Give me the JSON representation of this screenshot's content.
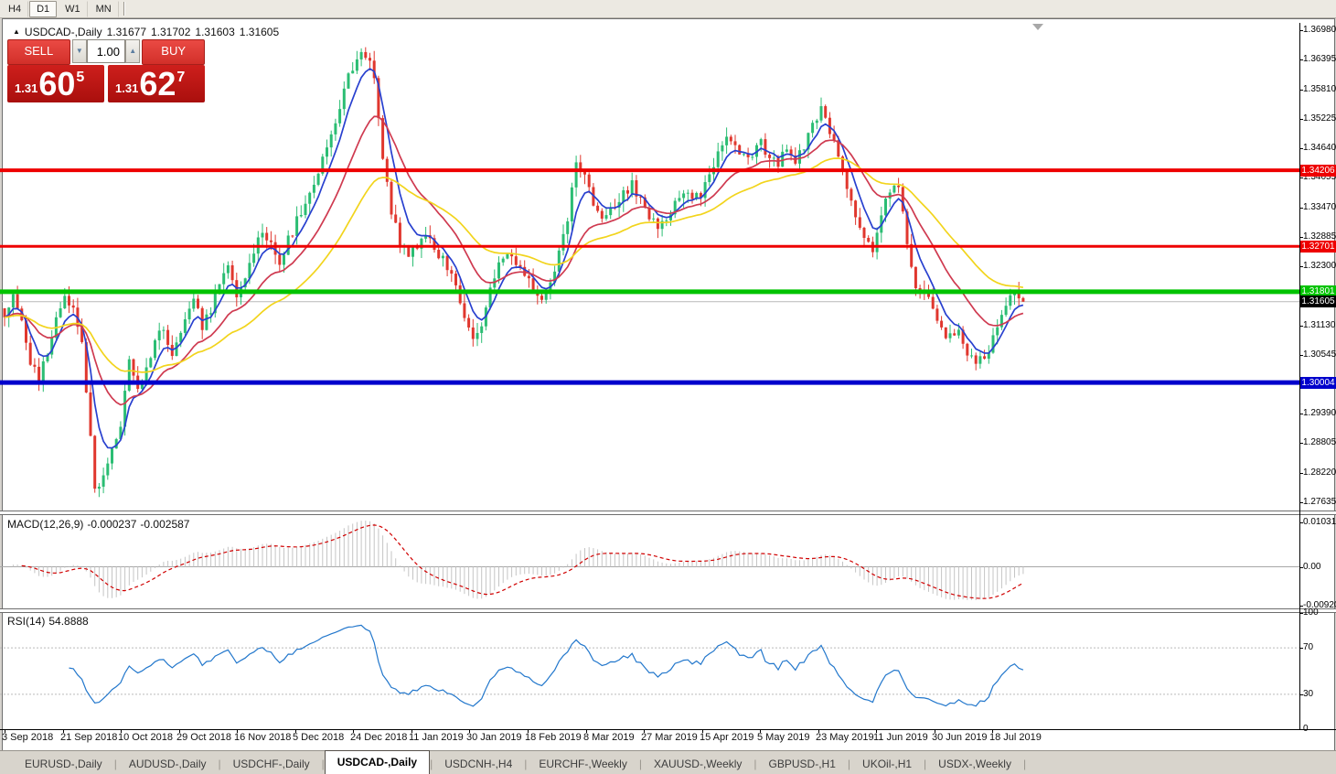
{
  "toolbar": {
    "timeframes": [
      {
        "label": "H4",
        "active": false
      },
      {
        "label": "D1",
        "active": true
      },
      {
        "label": "W1",
        "active": false
      },
      {
        "label": "MN",
        "active": false
      }
    ]
  },
  "chart": {
    "collapse_icon": "▲",
    "symbol_title": "USDCAD-,Daily",
    "ohlc": {
      "open": "1.31677",
      "high": "1.31702",
      "low": "1.31603",
      "close": "1.31605"
    },
    "trade_panel": {
      "sell_label": "SELL",
      "buy_label": "BUY",
      "volume": "1.00",
      "spin_down_icon": "▼",
      "spin_up_icon": "▲",
      "sell_price": {
        "prefix": "1.31",
        "big": "60",
        "sup": "5"
      },
      "buy_price": {
        "prefix": "1.31",
        "big": "62",
        "sup": "7"
      }
    },
    "price_axis": {
      "ticks": [
        "1.36980",
        "1.36395",
        "1.35810",
        "1.35225",
        "1.34640",
        "1.34055",
        "1.33470",
        "1.32885",
        "1.32300",
        "1.31130",
        "1.30545",
        "1.29390",
        "1.28805",
        "1.28220",
        "1.27635"
      ],
      "tags": [
        {
          "label": "1.34206",
          "color": "#ee0000"
        },
        {
          "label": "1.32701",
          "color": "#ee0000"
        },
        {
          "label": "1.31801",
          "color": "#00c300"
        },
        {
          "label": "1.31605",
          "color": "#000000"
        },
        {
          "label": "1.30004",
          "color": "#0000cc"
        }
      ]
    },
    "levels": [
      {
        "price": 1.34206,
        "color": "#ee0000",
        "width": 4
      },
      {
        "price": 1.32701,
        "color": "#ee0000",
        "width": 3
      },
      {
        "price": 1.31801,
        "color": "#00c300",
        "width": 5
      },
      {
        "price": 1.30004,
        "color": "#0000cc",
        "width": 5
      },
      {
        "price": 1.31605,
        "color": "#b9b9b9",
        "width": 1
      }
    ],
    "dates": [
      "3 Sep 2018",
      "21 Sep 2018",
      "10 Oct 2018",
      "29 Oct 2018",
      "16 Nov 2018",
      "5 Dec 2018",
      "24 Dec 2018",
      "11 Jan 2019",
      "30 Jan 2019",
      "18 Feb 2019",
      "8 Mar 2019",
      "27 Mar 2019",
      "15 Apr 2019",
      "5 May 2019",
      "23 May 2019",
      "11 Jun 2019",
      "30 Jun 2019",
      "18 Jul 2019"
    ],
    "chart_data": {
      "type": "candlestick",
      "symbol": "USDCAD",
      "timeframe": "Daily",
      "candle_count": 238,
      "colors": {
        "up": "#2bbd73",
        "down": "#e0372e"
      },
      "moving_averages": [
        {
          "period": 6,
          "color": "#2840cf"
        },
        {
          "period": 18,
          "color": "#cf3a50"
        },
        {
          "period": 40,
          "color": "#f2d41c"
        }
      ],
      "last_candle": {
        "open": 1.31677,
        "high": 1.31702,
        "low": 1.31603,
        "close": 1.31605
      },
      "close_keypoints": [
        [
          0,
          1.314
        ],
        [
          2,
          1.3172
        ],
        [
          4,
          1.312
        ],
        [
          6,
          1.3032
        ],
        [
          8,
          1.301
        ],
        [
          10,
          1.3066
        ],
        [
          12,
          1.3122
        ],
        [
          14,
          1.3168
        ],
        [
          16,
          1.3148
        ],
        [
          18,
          1.3078
        ],
        [
          20,
          1.29
        ],
        [
          21,
          1.2786
        ],
        [
          23,
          1.2822
        ],
        [
          25,
          1.2872
        ],
        [
          27,
          1.2922
        ],
        [
          29,
          1.304
        ],
        [
          31,
          1.2992
        ],
        [
          33,
          1.3022
        ],
        [
          35,
          1.3082
        ],
        [
          37,
          1.3112
        ],
        [
          39,
          1.3058
        ],
        [
          42,
          1.3122
        ],
        [
          44,
          1.3162
        ],
        [
          46,
          1.3112
        ],
        [
          48,
          1.314
        ],
        [
          50,
          1.32
        ],
        [
          52,
          1.3232
        ],
        [
          54,
          1.3172
        ],
        [
          56,
          1.3212
        ],
        [
          58,
          1.3262
        ],
        [
          60,
          1.3292
        ],
        [
          62,
          1.3272
        ],
        [
          64,
          1.3242
        ],
        [
          66,
          1.3282
        ],
        [
          68,
          1.332
        ],
        [
          70,
          1.3352
        ],
        [
          72,
          1.3392
        ],
        [
          74,
          1.3442
        ],
        [
          76,
          1.3492
        ],
        [
          78,
          1.3552
        ],
        [
          80,
          1.3602
        ],
        [
          82,
          1.3645
        ],
        [
          83,
          1.3656
        ],
        [
          85,
          1.3632
        ],
        [
          86,
          1.36
        ],
        [
          88,
          1.3452
        ],
        [
          90,
          1.3342
        ],
        [
          92,
          1.3272
        ],
        [
          94,
          1.3252
        ],
        [
          96,
          1.3272
        ],
        [
          98,
          1.3292
        ],
        [
          100,
          1.3272
        ],
        [
          102,
          1.3242
        ],
        [
          104,
          1.3222
        ],
        [
          106,
          1.3162
        ],
        [
          107,
          1.3132
        ],
        [
          109,
          1.3082
        ],
        [
          111,
          1.3122
        ],
        [
          113,
          1.3182
        ],
        [
          115,
          1.3232
        ],
        [
          117,
          1.3252
        ],
        [
          119,
          1.3242
        ],
        [
          121,
          1.3212
        ],
        [
          123,
          1.3182
        ],
        [
          125,
          1.3162
        ],
        [
          127,
          1.3198
        ],
        [
          129,
          1.3252
        ],
        [
          131,
          1.3322
        ],
        [
          133,
          1.3432
        ],
        [
          135,
          1.3402
        ],
        [
          137,
          1.3352
        ],
        [
          139,
          1.3322
        ],
        [
          141,
          1.3342
        ],
        [
          143,
          1.3362
        ],
        [
          145,
          1.3382
        ],
        [
          146,
          1.3392
        ],
        [
          148,
          1.3362
        ],
        [
          150,
          1.3332
        ],
        [
          152,
          1.3312
        ],
        [
          154,
          1.3332
        ],
        [
          156,
          1.3352
        ],
        [
          158,
          1.3372
        ],
        [
          160,
          1.3362
        ],
        [
          162,
          1.3372
        ],
        [
          164,
          1.3412
        ],
        [
          166,
          1.3452
        ],
        [
          168,
          1.3482
        ],
        [
          170,
          1.3462
        ],
        [
          172,
          1.3442
        ],
        [
          174,
          1.3452
        ],
        [
          176,
          1.3472
        ],
        [
          178,
          1.3452
        ],
        [
          180,
          1.3432
        ],
        [
          182,
          1.3462
        ],
        [
          184,
          1.3442
        ],
        [
          186,
          1.3472
        ],
        [
          188,
          1.3512
        ],
        [
          190,
          1.3542
        ],
        [
          192,
          1.3502
        ],
        [
          194,
          1.3442
        ],
        [
          196,
          1.3392
        ],
        [
          198,
          1.3332
        ],
        [
          200,
          1.3282
        ],
        [
          202,
          1.3266
        ],
        [
          204,
          1.3332
        ],
        [
          206,
          1.3382
        ],
        [
          208,
          1.3398
        ],
        [
          210,
          1.3272
        ],
        [
          212,
          1.3192
        ],
        [
          214,
          1.318
        ],
        [
          216,
          1.3142
        ],
        [
          218,
          1.3102
        ],
        [
          220,
          1.3092
        ],
        [
          222,
          1.3112
        ],
        [
          224,
          1.3062
        ],
        [
          226,
          1.3046
        ],
        [
          228,
          1.3042
        ],
        [
          230,
          1.3092
        ],
        [
          232,
          1.3132
        ],
        [
          234,
          1.3172
        ],
        [
          235,
          1.3186
        ],
        [
          236,
          1.3168
        ],
        [
          237,
          1.31605
        ]
      ]
    }
  },
  "macd": {
    "label": "MACD(12,26,9)",
    "value": "-0.000237",
    "signal": "-0.002587",
    "axis": [
      "0.010311",
      "0.00",
      "-0.009203"
    ],
    "histogram_color": "#c4c4c4",
    "signal_color": "#d00000"
  },
  "rsi": {
    "label": "RSI(14)",
    "value": "54.8888",
    "axis": [
      "100",
      "70",
      "30",
      "0"
    ],
    "levels": [
      70,
      30
    ],
    "line_color": "#2277cc"
  },
  "tabs": [
    {
      "label": "EURUSD-,Daily",
      "active": false
    },
    {
      "label": "AUDUSD-,Daily",
      "active": false
    },
    {
      "label": "USDCHF-,Daily",
      "active": false
    },
    {
      "label": "USDCAD-,Daily",
      "active": true
    },
    {
      "label": "USDCNH-,H4",
      "active": false
    },
    {
      "label": "EURCHF-,Weekly",
      "active": false
    },
    {
      "label": "XAUUSD-,Weekly",
      "active": false
    },
    {
      "label": "GBPUSD-,H1",
      "active": false
    },
    {
      "label": "UKOil-,H1",
      "active": false
    },
    {
      "label": "USDX-,Weekly",
      "active": false
    }
  ]
}
